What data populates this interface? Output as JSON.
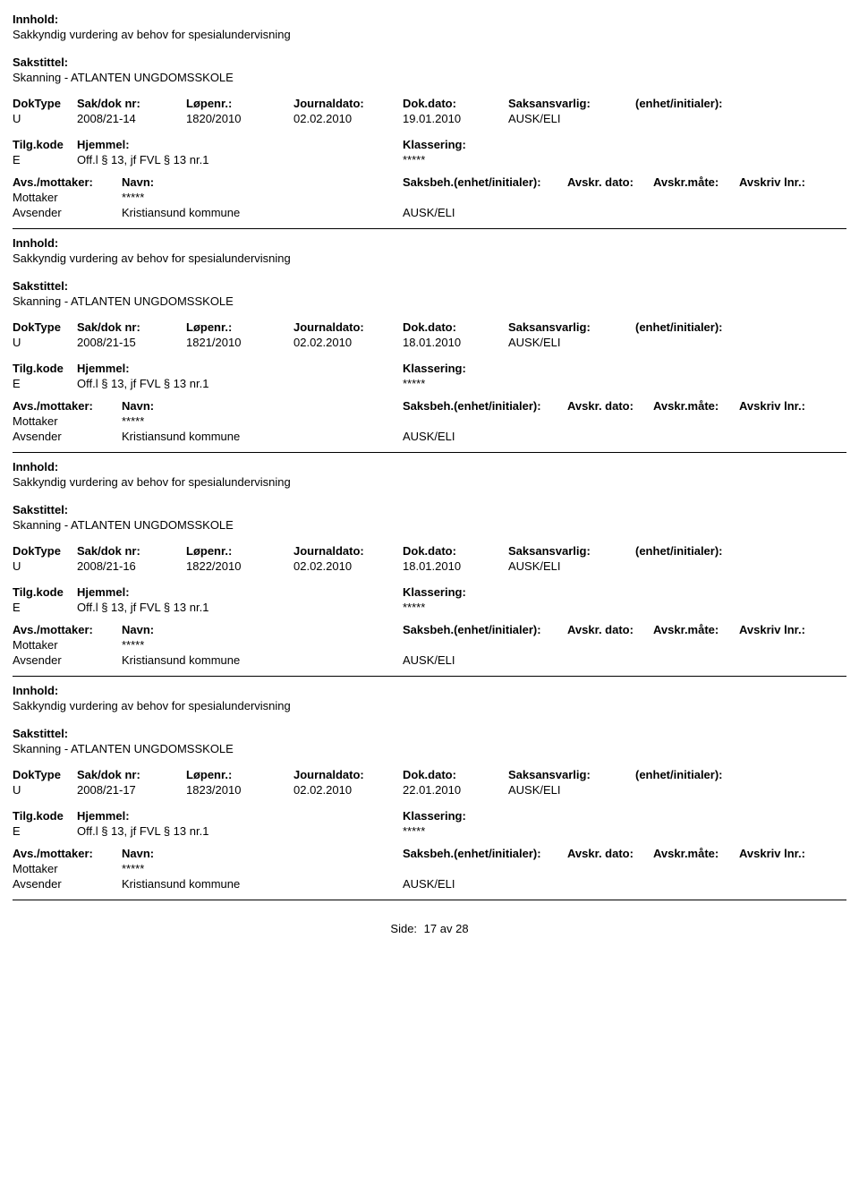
{
  "labels": {
    "innhold": "Innhold:",
    "sakstittel": "Sakstittel:",
    "doktype": "DokType",
    "sakdok": "Sak/dok nr:",
    "lopenr": "Løpenr.:",
    "journaldato": "Journaldato:",
    "dokdato": "Dok.dato:",
    "saksansvarlig": "Saksansvarlig:",
    "enhet": "(enhet/initialer):",
    "tilgkode": "Tilg.kode",
    "hjemmel": "Hjemmel:",
    "klassering": "Klassering:",
    "avs_mottaker": "Avs./mottaker:",
    "navn": "Navn:",
    "saksbeh": "Saksbeh.(enhet/initialer):",
    "avskr_dato": "Avskr. dato:",
    "avskr_mate": "Avskr.måte:",
    "avskriv_lnr": "Avskriv lnr.:",
    "mottaker": "Mottaker",
    "avsender": "Avsender"
  },
  "commonValues": {
    "innholdText": "Sakkyndig vurdering av behov for spesialundervisning",
    "sakstittelText": "Skanning - ATLANTEN UNGDOMSSKOLE",
    "doktype": "U",
    "journaldato": "02.02.2010",
    "tilgkode": "E",
    "hjemmelText": "Off.l § 13, jf FVL § 13 nr.1",
    "klassStars": "*****",
    "mottakerName": "*****",
    "avsenderName": "Kristiansund kommune",
    "unit": "AUSK/ELI"
  },
  "records": [
    {
      "sakdok": "2008/21-14",
      "lopenr": "1820/2010",
      "dokdato": "19.01.2010"
    },
    {
      "sakdok": "2008/21-15",
      "lopenr": "1821/2010",
      "dokdato": "18.01.2010"
    },
    {
      "sakdok": "2008/21-16",
      "lopenr": "1822/2010",
      "dokdato": "18.01.2010"
    },
    {
      "sakdok": "2008/21-17",
      "lopenr": "1823/2010",
      "dokdato": "22.01.2010"
    }
  ],
  "footer": {
    "sideLabel": "Side:",
    "pageCurrent": "17",
    "pageSep": "av",
    "pageTotal": "28"
  }
}
